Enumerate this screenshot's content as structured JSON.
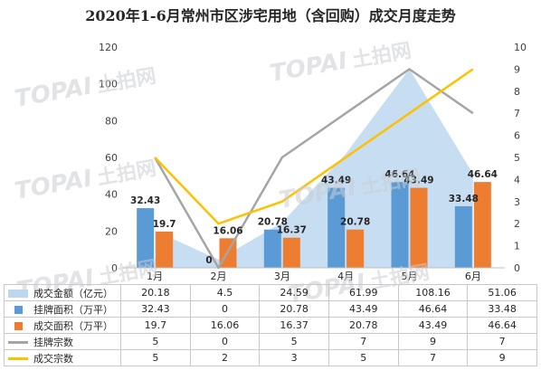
{
  "chart_data": {
    "type": "bar",
    "title": "2020年1-6月常州市区涉宅用地（含回购）成交月度走势",
    "categories": [
      "1月",
      "2月",
      "3月",
      "4月",
      "5月",
      "6月"
    ],
    "y_left": {
      "min": 0,
      "max": 120,
      "step": 20
    },
    "y_right": {
      "min": 0,
      "max": 10,
      "step": 1
    },
    "grid": false,
    "legend": "table-below",
    "series": [
      {
        "name": "成交金额（亿元）",
        "kind": "area",
        "axis": "left",
        "color": "#bdd7ee",
        "values": [
          20.18,
          4.5,
          24.59,
          61.99,
          108.16,
          51.06
        ]
      },
      {
        "name": "挂牌面积（万平）",
        "kind": "bar",
        "axis": "left",
        "color": "#5b9bd5",
        "values": [
          32.43,
          0,
          20.78,
          43.49,
          46.64,
          33.48
        ]
      },
      {
        "name": "成交面积（万平）",
        "kind": "bar",
        "axis": "left",
        "color": "#ed7d31",
        "values": [
          19.7,
          16.06,
          16.37,
          20.78,
          43.49,
          46.64
        ]
      },
      {
        "name": "挂牌宗数",
        "kind": "line",
        "axis": "right",
        "color": "#a5a5a5",
        "values": [
          5,
          0,
          5,
          7,
          9,
          7
        ]
      },
      {
        "name": "成交宗数",
        "kind": "line",
        "axis": "right",
        "color": "#ffc000",
        "values": [
          5,
          2,
          3,
          5,
          7,
          9
        ]
      }
    ]
  },
  "table": {
    "rows": [
      {
        "label": "成交金额（亿元）",
        "cells": [
          "20.18",
          "4.5",
          "24.59",
          "61.99",
          "108.16",
          "51.06"
        ]
      },
      {
        "label": "挂牌面积（万平）",
        "cells": [
          "32.43",
          "0",
          "20.78",
          "43.49",
          "46.64",
          "33.48"
        ]
      },
      {
        "label": "成交面积（万平）",
        "cells": [
          "19.7",
          "16.06",
          "16.37",
          "20.78",
          "43.49",
          "46.64"
        ]
      },
      {
        "label": "挂牌宗数",
        "cells": [
          "5",
          "0",
          "5",
          "7",
          "9",
          "7"
        ]
      },
      {
        "label": "成交宗数",
        "cells": [
          "5",
          "2",
          "3",
          "5",
          "7",
          "9"
        ]
      }
    ]
  },
  "watermark": {
    "brand": "TOPAI",
    "cn": "土拍网",
    "color": "#c9cdd3"
  }
}
